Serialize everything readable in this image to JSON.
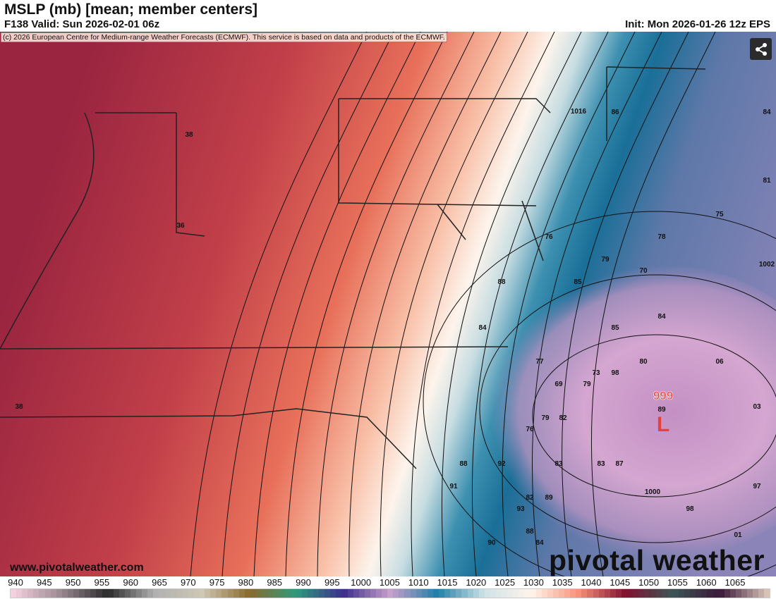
{
  "header": {
    "title": "MSLP (mb) [mean; member centers]",
    "valid": "F138 Valid: Sun 2026-02-01 06z",
    "init": "Init: Mon 2026-01-26 12z EPS"
  },
  "copyright": "(c) 2026 European Centre for Medium-range Weather Forecasts (ECMWF). This service is based on data and products of the ECMWF.",
  "share_icon": "share-icon",
  "website": "www.pivotalweather.com",
  "logo": "pivotal weather",
  "low_center": {
    "pressure": "999",
    "symbol": "L",
    "color": "#e8413c"
  },
  "member_labels": [
    "1016",
    "86",
    "84",
    "38",
    "81",
    "75",
    "36",
    "76",
    "78",
    "79",
    "70",
    "1002",
    "85",
    "88",
    "84",
    "85",
    "84",
    "77",
    "80",
    "06",
    "73",
    "98",
    "69",
    "79",
    "89",
    "03",
    "38",
    "79",
    "82",
    "76",
    "88",
    "92",
    "83",
    "83",
    "87",
    "91",
    "1000",
    "97",
    "82",
    "89",
    "93",
    "98",
    "88",
    "90",
    "84",
    "01"
  ],
  "colorbar": {
    "labels": [
      "940",
      "945",
      "950",
      "955",
      "960",
      "965",
      "970",
      "975",
      "980",
      "985",
      "990",
      "995",
      "1000",
      "1005",
      "1010",
      "1015",
      "1020",
      "1025",
      "1030",
      "1035",
      "1040",
      "1045",
      "1050",
      "1055",
      "1060",
      "1065"
    ],
    "stops": [
      "#f6d0de",
      "#9a8a92",
      "#2a2a2a",
      "#b0b0b0",
      "#cfc8b4",
      "#8a6a2c",
      "#2f9a7c",
      "#3c2f8a",
      "#c7a0cb",
      "#1f7fa8",
      "#cfe3e6",
      "#fff4ea",
      "#f8917a",
      "#7e1030",
      "#3d5656",
      "#3a1838",
      "#d7c2b6"
    ]
  }
}
